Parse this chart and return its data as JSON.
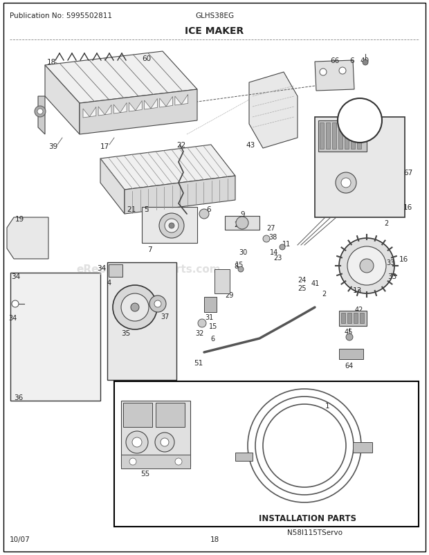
{
  "title": "ICE MAKER",
  "pub_no": "Publication No: 5995502811",
  "model": "GLHS38EG",
  "date": "10/07",
  "page": "18",
  "watermark": "eReplacementParts.com",
  "serial": "N58I115TServo",
  "install_label": "INSTALLATION PARTS",
  "bg_color": "#ffffff",
  "border_color": "#000000",
  "text_color": "#000000",
  "line_color": "#444444",
  "gray1": "#888888",
  "gray2": "#bbbbbb",
  "gray3": "#dddddd"
}
